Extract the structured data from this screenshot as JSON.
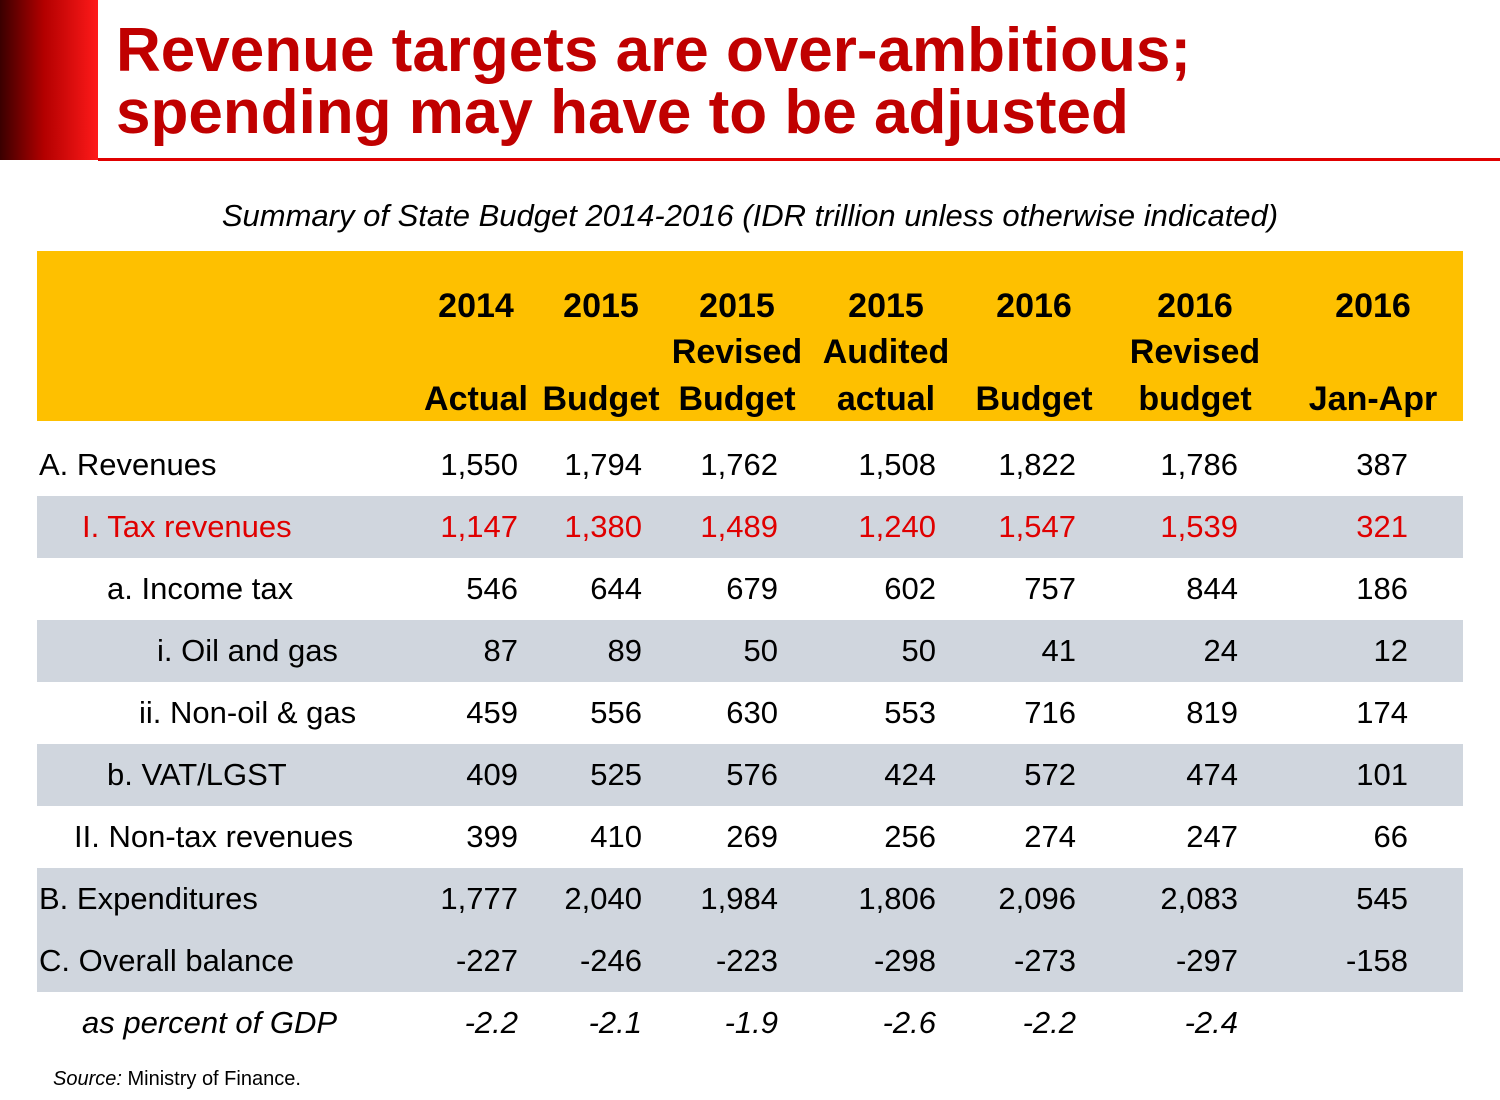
{
  "slide": {
    "title_line1": "Revenue targets are over-ambitious;",
    "title_line2": "spending may have to be adjusted",
    "subtitle": "Summary of State Budget 2014-2016 (IDR trillion unless otherwise indicated)",
    "source_label": "Source:",
    "source_text": " Ministry of Finance."
  },
  "chart_data": {
    "type": "table",
    "title": "Summary of State Budget 2014-2016 (IDR trillion unless otherwise indicated)",
    "columns": [
      {
        "line1": "2014",
        "line2": "",
        "line3": "Actual"
      },
      {
        "line1": "2015",
        "line2": "",
        "line3": "Budget"
      },
      {
        "line1": "2015",
        "line2": "Revised",
        "line3": "Budget"
      },
      {
        "line1": "2015",
        "line2": "Audited",
        "line3": "actual"
      },
      {
        "line1": "2016",
        "line2": "",
        "line3": "Budget"
      },
      {
        "line1": "2016",
        "line2": "Revised",
        "line3": "budget"
      },
      {
        "line1": "2016",
        "line2": "",
        "line3": "Jan-Apr"
      }
    ],
    "rows": [
      {
        "label": "A. Revenues",
        "values": [
          "1,550",
          "1,794",
          "1,762",
          "1,508",
          "1,822",
          "1,786",
          "387"
        ]
      },
      {
        "label": "I. Tax revenues",
        "values": [
          "1,147",
          "1,380",
          "1,489",
          "1,240",
          "1,547",
          "1,539",
          "321"
        ]
      },
      {
        "label": "a. Income tax",
        "values": [
          "546",
          "644",
          "679",
          "602",
          "757",
          "844",
          "186"
        ]
      },
      {
        "label": "i. Oil and gas",
        "values": [
          "87",
          "89",
          "50",
          "50",
          "41",
          "24",
          "12"
        ]
      },
      {
        "label": "ii. Non-oil & gas",
        "values": [
          "459",
          "556",
          "630",
          "553",
          "716",
          "819",
          "174"
        ]
      },
      {
        "label": "b. VAT/LGST",
        "values": [
          "409",
          "525",
          "576",
          "424",
          "572",
          "474",
          "101"
        ]
      },
      {
        "label": "II. Non-tax revenues",
        "values": [
          "399",
          "410",
          "269",
          "256",
          "274",
          "247",
          "66"
        ]
      },
      {
        "label": "B. Expenditures",
        "values": [
          "1,777",
          "2,040",
          "1,984",
          "1,806",
          "2,096",
          "2,083",
          "545"
        ]
      },
      {
        "label": "C. Overall balance",
        "values": [
          "-227",
          "-246",
          "-223",
          "-298",
          "-273",
          "-297",
          "-158"
        ]
      },
      {
        "label": "as percent of GDP",
        "values": [
          "-2.2",
          "-2.1",
          "-1.9",
          "-2.6",
          "-2.2",
          "-2.4",
          ""
        ]
      }
    ]
  },
  "colors": {
    "title": "#c00000",
    "header_band": "#fec000",
    "row_shade": "#d0d6de",
    "highlight_text": "#e00000"
  }
}
